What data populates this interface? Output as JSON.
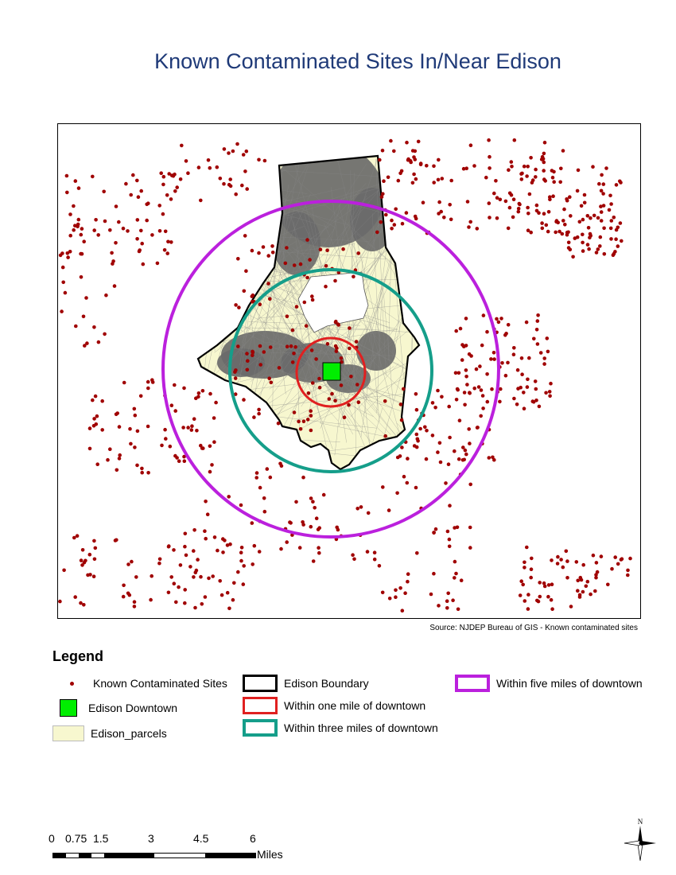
{
  "title": "Known Contaminated Sites In/Near Edison",
  "source": "Source: NJDEP Bureau of GIS - Known contaminated sites",
  "legend": {
    "heading": "Legend",
    "items": [
      {
        "label": "Known Contaminated Sites",
        "symbol": "dot",
        "color": "#a00000"
      },
      {
        "label": "Edison Downtown",
        "symbol": "square",
        "color": "#00ee00"
      },
      {
        "label": "Edison_parcels",
        "symbol": "parcel",
        "color": "#f7f7cf"
      },
      {
        "label": "Edison Boundary",
        "symbol": "ring",
        "color": "#000000"
      },
      {
        "label": "Within one mile of downtown",
        "symbol": "ring",
        "color": "#e02020"
      },
      {
        "label": "Within three miles of downtown",
        "symbol": "ring",
        "color": "#159e8a"
      },
      {
        "label": "Within five miles of downtown",
        "symbol": "ring",
        "color": "#bb20dd"
      }
    ]
  },
  "scale": {
    "ticks": [
      "0",
      "0.75",
      "1.5",
      "3",
      "4.5",
      "6"
    ],
    "unit": "Miles"
  },
  "north_label": "N",
  "colors": {
    "sites": "#a00000",
    "parcels": "#f7f7cf",
    "dense_parcels": "#6a6a6a",
    "boundary": "#000000",
    "one_mile": "#e02020",
    "three_mile": "#159e8a",
    "five_mile": "#bb20dd",
    "downtown": "#00ee00"
  }
}
